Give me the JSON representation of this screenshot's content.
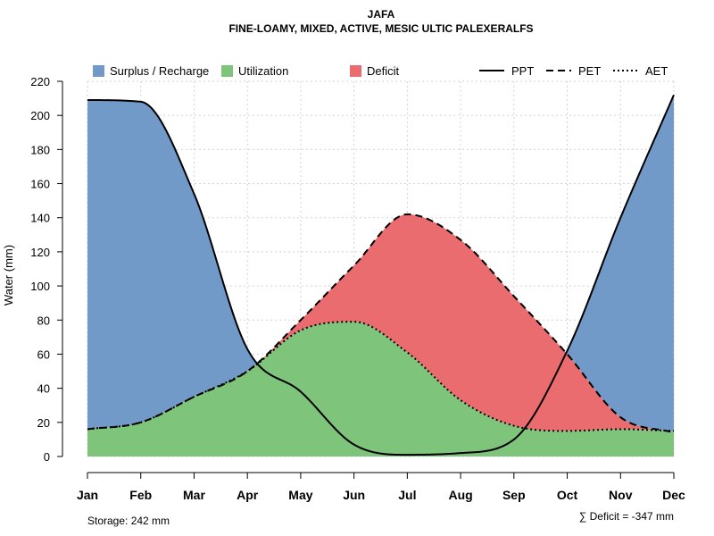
{
  "chart_data": {
    "type": "area",
    "title": "JAFA",
    "subtitle": "FINE-LOAMY, MIXED, ACTIVE, MESIC ULTIC PALEXERALFS",
    "ylabel": "Water (mm)",
    "xlabel": "",
    "categories": [
      "Jan",
      "Feb",
      "Mar",
      "Apr",
      "May",
      "Jun",
      "Jul",
      "Aug",
      "Sep",
      "Oct",
      "Nov",
      "Dec"
    ],
    "ylim": [
      0,
      220
    ],
    "yticks": [
      0,
      20,
      40,
      60,
      80,
      100,
      120,
      140,
      160,
      180,
      200,
      220
    ],
    "grid": true,
    "legend_position": "top",
    "series": [
      {
        "name": "PPT",
        "line_style": "solid",
        "values": [
          209,
          208,
          154,
          63,
          38,
          7,
          1,
          2,
          10,
          62,
          140,
          212
        ]
      },
      {
        "name": "PET",
        "line_style": "dashed",
        "values": [
          16,
          20,
          35,
          50,
          80,
          112,
          142,
          127,
          94,
          60,
          23,
          14
        ]
      },
      {
        "name": "AET",
        "line_style": "dotted",
        "values": [
          16,
          20,
          35,
          50,
          74,
          79,
          61,
          33,
          18,
          15,
          16,
          15
        ]
      }
    ],
    "fill_legend": [
      {
        "name": "Surplus / Recharge",
        "color": "#729ac9"
      },
      {
        "name": "Utilization",
        "color": "#7fc47b"
      },
      {
        "name": "Deficit",
        "color": "#eb6c6e"
      }
    ],
    "annotations": {
      "storage": "Storage: 242 mm",
      "deficit": "∑ Deficit = -347 mm"
    }
  }
}
